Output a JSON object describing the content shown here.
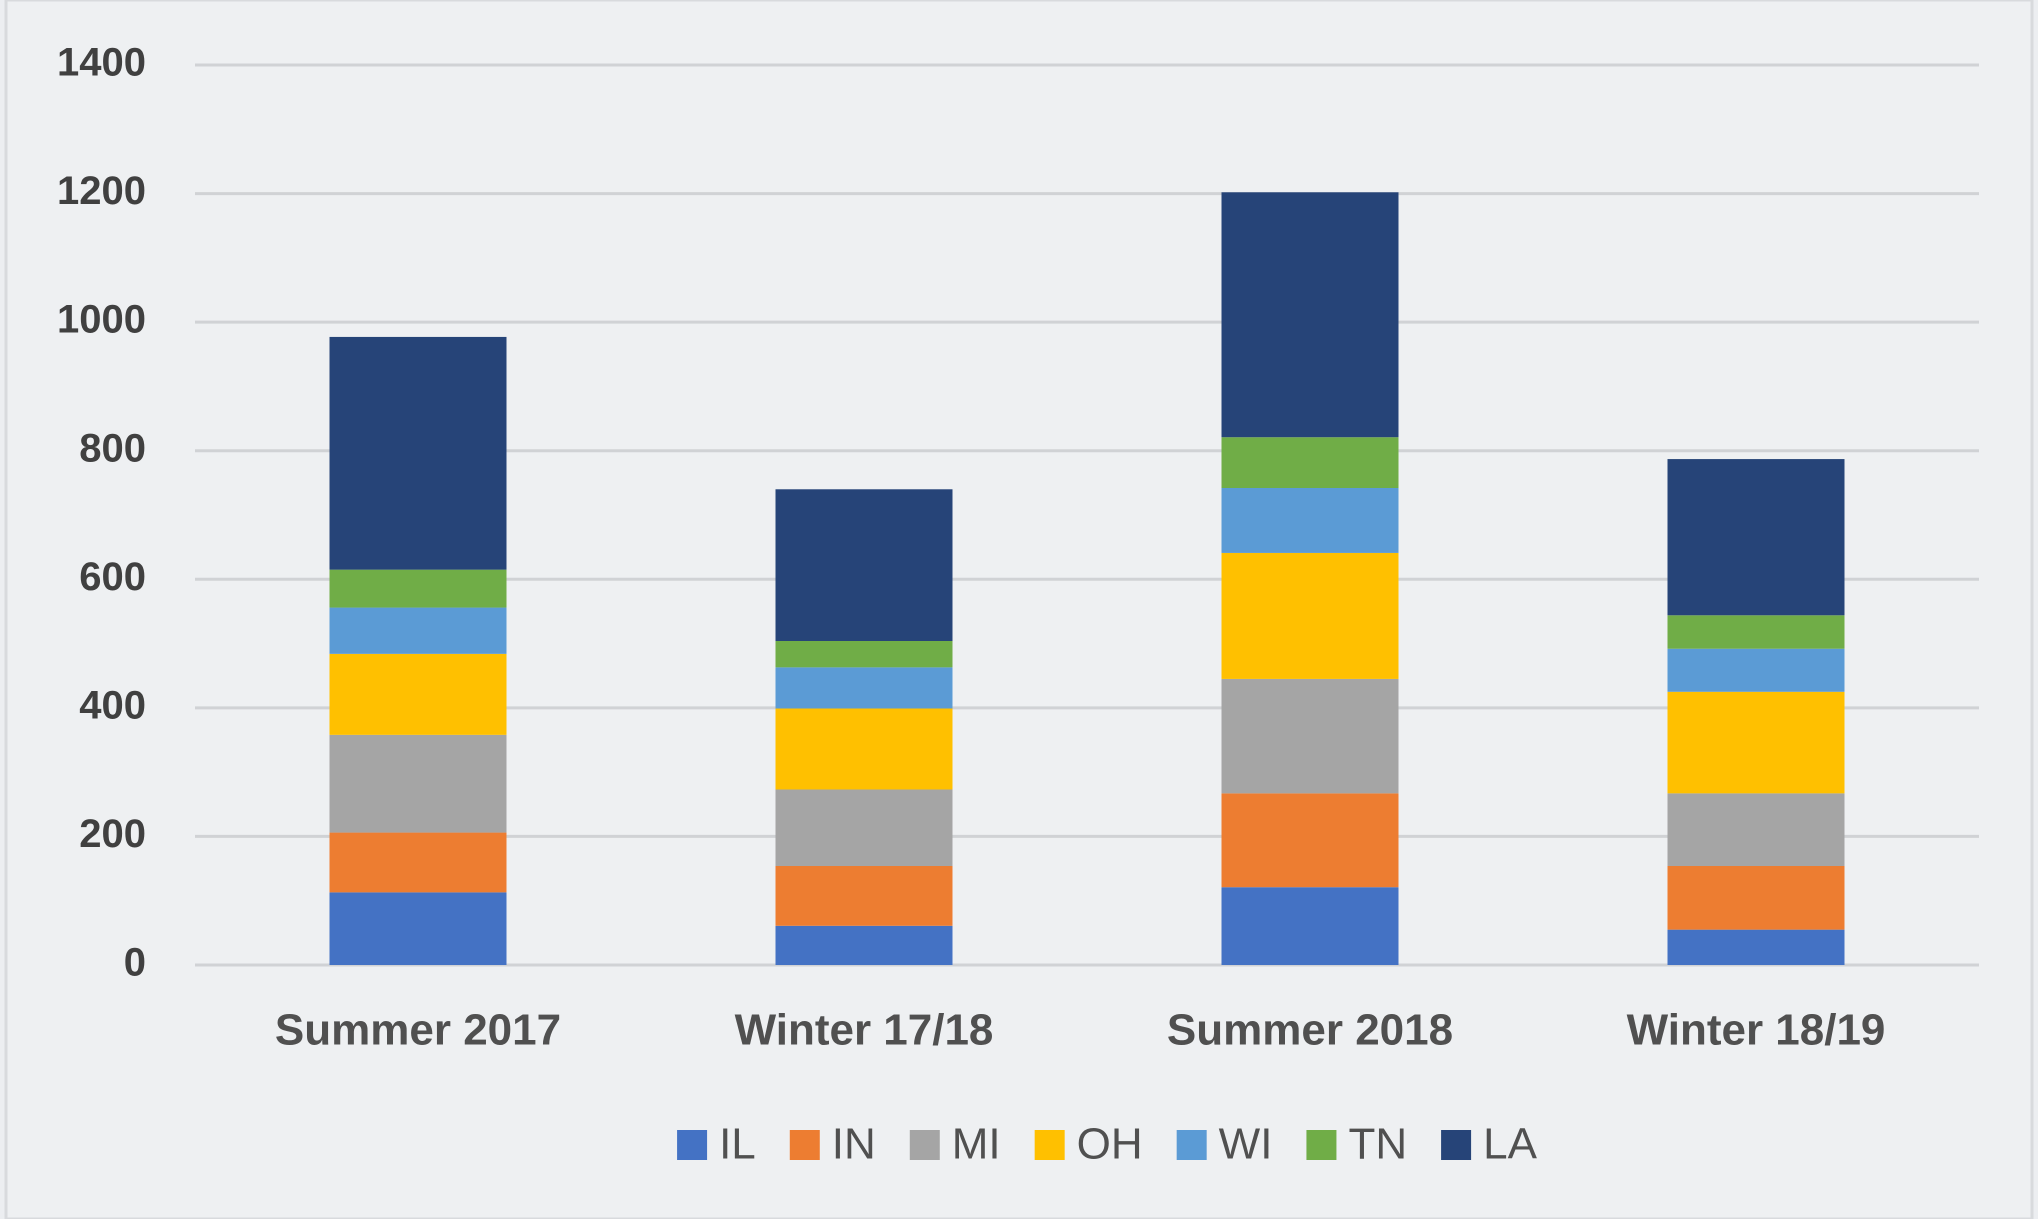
{
  "chart_data": {
    "type": "stacked_bar",
    "categories": [
      "Summer 2017",
      "Winter 17/18",
      "Summer 2018",
      "Winter 18/19"
    ],
    "series": [
      {
        "name": "IL",
        "color": "#4472c4",
        "values": [
          113,
          61,
          121,
          55
        ]
      },
      {
        "name": "IN",
        "color": "#ed7d31",
        "values": [
          93,
          93,
          146,
          99
        ]
      },
      {
        "name": "MI",
        "color": "#a5a5a5",
        "values": [
          152,
          119,
          178,
          113
        ]
      },
      {
        "name": "OH",
        "color": "#ffc000",
        "values": [
          126,
          126,
          196,
          158
        ]
      },
      {
        "name": "WI",
        "color": "#5b9bd5",
        "values": [
          72,
          64,
          101,
          67
        ]
      },
      {
        "name": "TN",
        "color": "#70ad47",
        "values": [
          59,
          41,
          79,
          52
        ]
      },
      {
        "name": "LA",
        "color": "#264478",
        "values": [
          362,
          236,
          381,
          243
        ]
      }
    ],
    "ylim": [
      0,
      1400
    ],
    "yticks": [
      0,
      200,
      400,
      600,
      800,
      1000,
      1200,
      1400
    ],
    "grid": true,
    "legend": "bottom"
  }
}
